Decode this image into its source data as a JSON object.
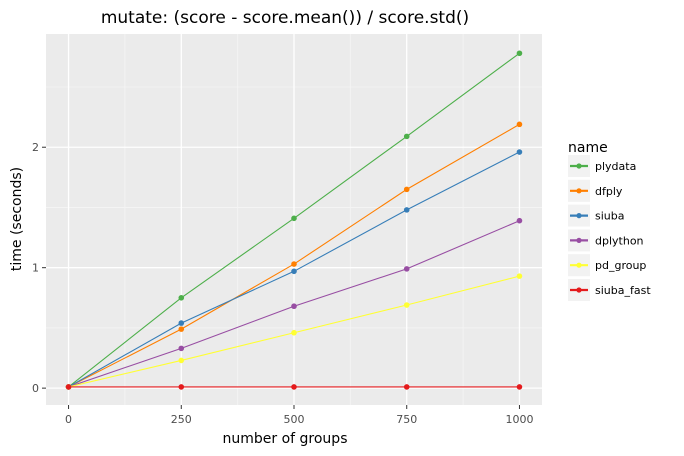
{
  "chart_data": {
    "type": "line",
    "title": "mutate: (score - score.mean()) / score.std()",
    "xlabel": "number of groups",
    "ylabel": "time (seconds)",
    "x": [
      0,
      250,
      500,
      750,
      1000
    ],
    "x_ticks": [
      0,
      250,
      500,
      750,
      1000
    ],
    "y_ticks": [
      0,
      1,
      2
    ],
    "xlim": [
      -50,
      1050
    ],
    "ylim": [
      -0.14,
      2.94
    ],
    "grid": true,
    "legend": {
      "title": "name",
      "placement": "right"
    },
    "series": [
      {
        "name": "plydata",
        "color": "#4daf4a",
        "values": [
          0.01,
          0.75,
          1.41,
          2.09,
          2.78
        ]
      },
      {
        "name": "dfply",
        "color": "#ff7f00",
        "values": [
          0.01,
          0.49,
          1.03,
          1.65,
          2.19
        ]
      },
      {
        "name": "siuba",
        "color": "#377eb8",
        "values": [
          0.01,
          0.54,
          0.97,
          1.48,
          1.96
        ]
      },
      {
        "name": "dplython",
        "color": "#984ea3",
        "values": [
          0.01,
          0.33,
          0.68,
          0.99,
          1.39
        ]
      },
      {
        "name": "pd_group",
        "color": "#ffff33",
        "values": [
          0.01,
          0.23,
          0.46,
          0.69,
          0.93
        ]
      },
      {
        "name": "siuba_fast",
        "color": "#e41a1c",
        "values": [
          0.01,
          0.01,
          0.01,
          0.01,
          0.01
        ]
      }
    ]
  }
}
